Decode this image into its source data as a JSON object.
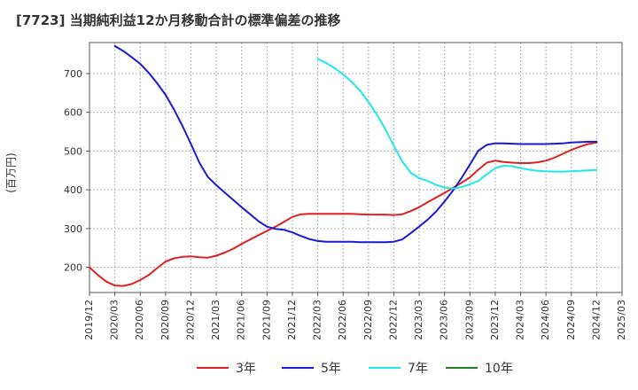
{
  "chart_data": {
    "type": "line",
    "title": "[7723]  当期純利益12か月移動合計の標準偏差の推移",
    "xlabel": "",
    "ylabel": "(百万円)",
    "ylim": [
      135,
      780
    ],
    "grid": true,
    "legend_position": "bottom",
    "y_ticks": [
      "200",
      "300",
      "400",
      "500",
      "600",
      "700"
    ],
    "x_ticks": [
      "2019/12",
      "2020/03",
      "2020/06",
      "2020/09",
      "2020/12",
      "2021/03",
      "2021/06",
      "2021/09",
      "2021/12",
      "2022/03",
      "2022/06",
      "2022/09",
      "2022/12",
      "2023/03",
      "2023/06",
      "2023/09",
      "2023/12",
      "2024/03",
      "2024/06",
      "2024/09",
      "2024/12",
      "2025/03"
    ],
    "series": [
      {
        "name": "3年",
        "color": "#e02020",
        "x": [
          "2019/12",
          "2020/01",
          "2020/02",
          "2020/03",
          "2020/04",
          "2020/05",
          "2020/06",
          "2020/07",
          "2020/08",
          "2020/09",
          "2020/10",
          "2020/11",
          "2020/12",
          "2021/01",
          "2021/02",
          "2021/03",
          "2021/04",
          "2021/05",
          "2021/06",
          "2021/07",
          "2021/08",
          "2021/09",
          "2021/10",
          "2021/11",
          "2021/12",
          "2022/01",
          "2022/02",
          "2022/03",
          "2022/04",
          "2022/05",
          "2022/06",
          "2022/07",
          "2022/08",
          "2022/09",
          "2022/10",
          "2022/11",
          "2022/12",
          "2023/01",
          "2023/02",
          "2023/03",
          "2023/04",
          "2023/05",
          "2023/06",
          "2023/07",
          "2023/08",
          "2023/09",
          "2023/10",
          "2023/11",
          "2023/12",
          "2024/01",
          "2024/02",
          "2024/03",
          "2024/04",
          "2024/05",
          "2024/06",
          "2024/07",
          "2024/08",
          "2024/09",
          "2024/10",
          "2024/11",
          "2024/12"
        ],
        "values": [
          200,
          180,
          163,
          153,
          152,
          157,
          167,
          180,
          198,
          215,
          223,
          227,
          228,
          226,
          225,
          230,
          238,
          248,
          260,
          272,
          283,
          294,
          305,
          317,
          330,
          337,
          338,
          338,
          338,
          338,
          338,
          338,
          337,
          336,
          336,
          336,
          335,
          337,
          345,
          355,
          368,
          380,
          392,
          405,
          418,
          432,
          452,
          470,
          475,
          472,
          470,
          469,
          469,
          471,
          475,
          483,
          493,
          503,
          511,
          518,
          522
        ]
      },
      {
        "name": "5年",
        "color": "#1a1ad6",
        "x": [
          "2020/03",
          "2020/04",
          "2020/05",
          "2020/06",
          "2020/07",
          "2020/08",
          "2020/09",
          "2020/10",
          "2020/11",
          "2020/12",
          "2021/01",
          "2021/02",
          "2021/03",
          "2021/04",
          "2021/05",
          "2021/06",
          "2021/07",
          "2021/08",
          "2021/09",
          "2021/10",
          "2021/11",
          "2021/12",
          "2022/01",
          "2022/02",
          "2022/03",
          "2022/04",
          "2022/05",
          "2022/06",
          "2022/07",
          "2022/08",
          "2022/09",
          "2022/10",
          "2022/11",
          "2022/12",
          "2023/01",
          "2023/02",
          "2023/03",
          "2023/04",
          "2023/05",
          "2023/06",
          "2023/07",
          "2023/08",
          "2023/09",
          "2023/10",
          "2023/11",
          "2023/12",
          "2024/01",
          "2024/02",
          "2024/03",
          "2024/04",
          "2024/05",
          "2024/06",
          "2024/07",
          "2024/08",
          "2024/09",
          "2024/10",
          "2024/11",
          "2024/12"
        ],
        "values": [
          771,
          758,
          742,
          725,
          702,
          675,
          645,
          607,
          565,
          518,
          470,
          433,
          412,
          393,
          374,
          355,
          337,
          319,
          305,
          299,
          297,
          290,
          281,
          273,
          268,
          266,
          266,
          266,
          266,
          265,
          265,
          265,
          265,
          266,
          272,
          288,
          305,
          323,
          344,
          370,
          398,
          430,
          465,
          501,
          516,
          520,
          520,
          519,
          518,
          518,
          518,
          518,
          519,
          520,
          522,
          523,
          524,
          524
        ]
      },
      {
        "name": "7年",
        "color": "#20e8e8",
        "x": [
          "2022/03",
          "2022/04",
          "2022/05",
          "2022/06",
          "2022/07",
          "2022/08",
          "2022/09",
          "2022/10",
          "2022/11",
          "2022/12",
          "2023/01",
          "2023/02",
          "2023/03",
          "2023/04",
          "2023/05",
          "2023/06",
          "2023/07",
          "2023/08",
          "2023/09",
          "2023/10",
          "2023/11",
          "2023/12",
          "2024/01",
          "2024/02",
          "2024/03",
          "2024/04",
          "2024/05",
          "2024/06",
          "2024/07",
          "2024/08",
          "2024/09",
          "2024/10",
          "2024/11",
          "2024/12"
        ],
        "values": [
          738,
          727,
          714,
          698,
          679,
          656,
          627,
          594,
          556,
          514,
          473,
          444,
          430,
          423,
          413,
          406,
          403,
          407,
          414,
          423,
          440,
          456,
          462,
          461,
          456,
          452,
          449,
          448,
          447,
          447,
          448,
          449,
          450,
          451
        ]
      },
      {
        "name": "10年",
        "color": "#208020",
        "x": [],
        "values": []
      }
    ]
  }
}
